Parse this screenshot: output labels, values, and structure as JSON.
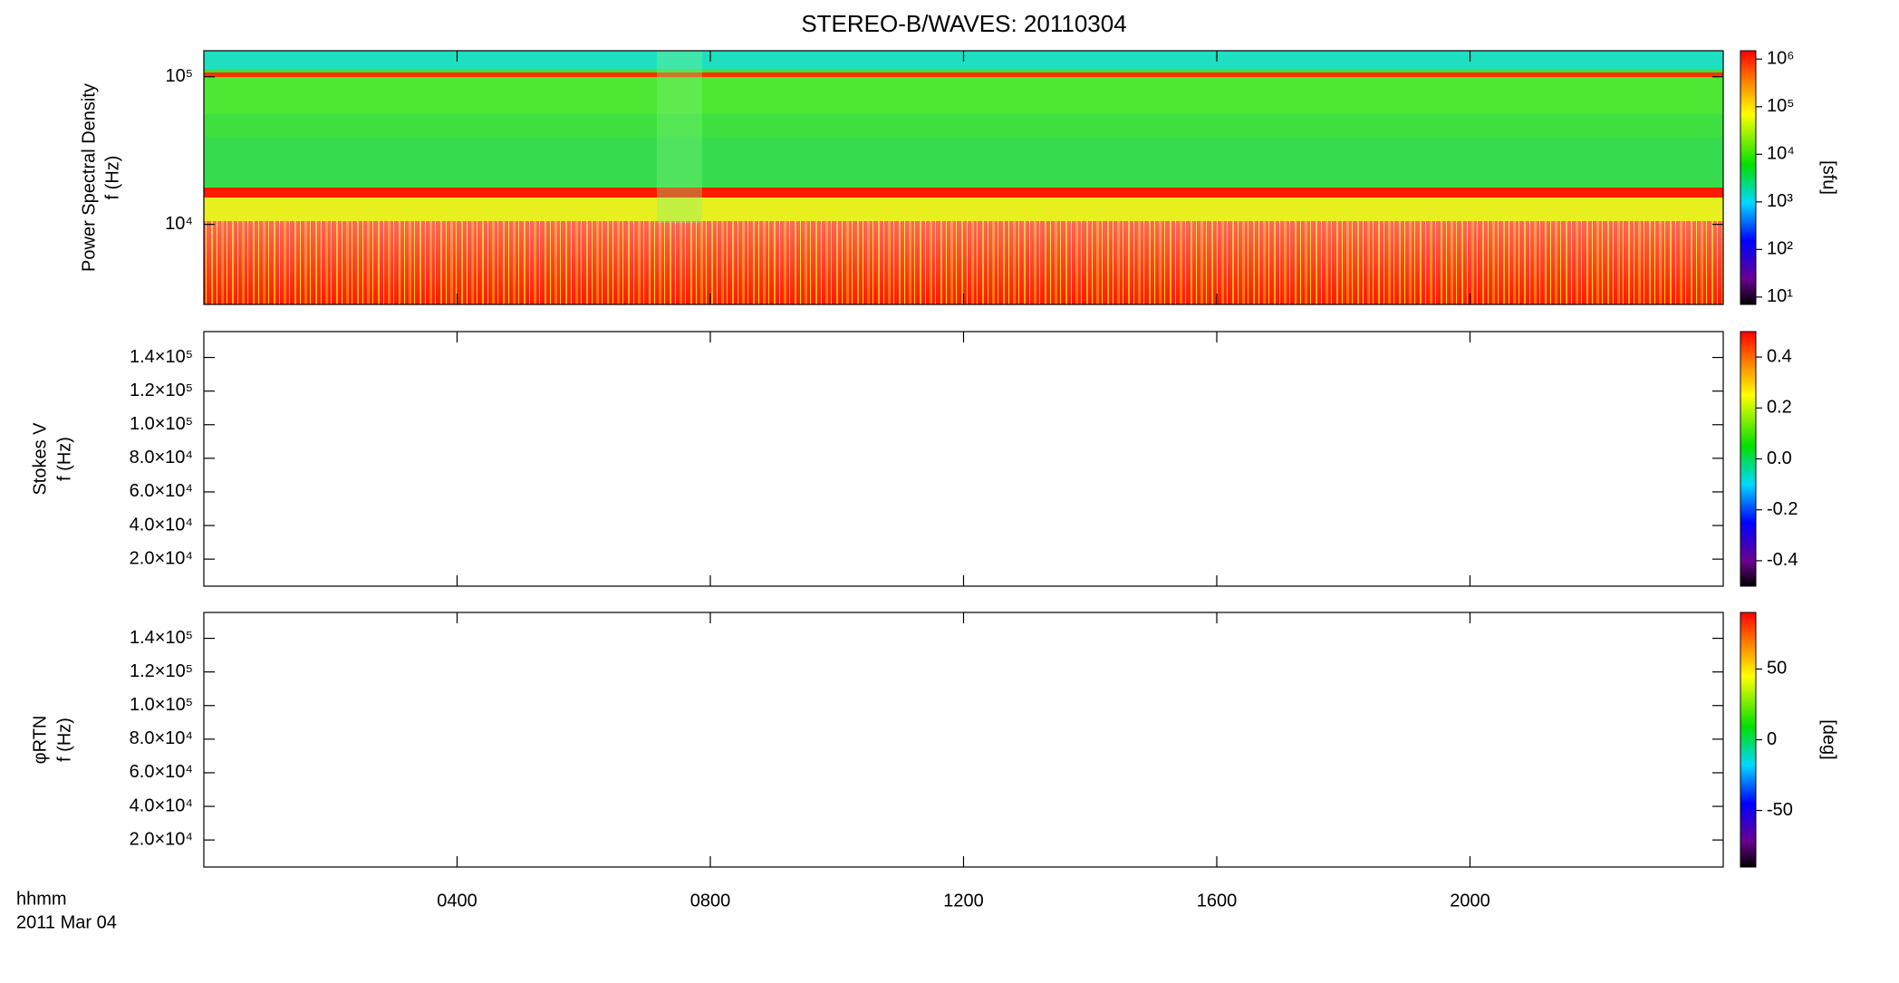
{
  "chart_data": [
    {
      "type": "spectrogram",
      "title": "STEREO-B/WAVES: 20110304",
      "ylabel": "Power Spectral Density",
      "yunit": "f (Hz)",
      "ylog": true,
      "ylim": [
        2870,
        150000
      ],
      "yticks": [
        {
          "value": 10000,
          "label": "10⁴"
        },
        {
          "value": 100000,
          "label": "10⁵"
        }
      ],
      "colorbar": {
        "log": true,
        "lim": [
          7,
          1500000
        ],
        "label": "[sfu]",
        "ticks": [
          {
            "value": 10,
            "label": "10¹"
          },
          {
            "value": 100,
            "label": "10²"
          },
          {
            "value": 1000,
            "label": "10³"
          },
          {
            "value": 10000,
            "label": "10⁴"
          },
          {
            "value": 100000,
            "label": "10⁵"
          },
          {
            "value": 1000000,
            "label": "10⁶"
          }
        ]
      }
    },
    {
      "type": "spectrogram",
      "ylabel": "Stokes V",
      "yunit": "f (Hz)",
      "ylog": false,
      "ylim": [
        3900,
        155400
      ],
      "yticks": [
        {
          "value": 20000,
          "label": "2.0×10⁴"
        },
        {
          "value": 40000,
          "label": "4.0×10⁴"
        },
        {
          "value": 60000,
          "label": "6.0×10⁴"
        },
        {
          "value": 80000,
          "label": "8.0×10⁴"
        },
        {
          "value": 100000,
          "label": "1.0×10⁵"
        },
        {
          "value": 120000,
          "label": "1.2×10⁵"
        },
        {
          "value": 140000,
          "label": "1.4×10⁵"
        }
      ],
      "colorbar": {
        "log": false,
        "lim": [
          -0.5,
          0.5
        ],
        "ticks": [
          -0.4,
          -0.2,
          {
            "value": 0,
            "label": "0.0"
          },
          0.2,
          0.4
        ]
      }
    },
    {
      "type": "spectrogram",
      "ylabel": "φRTN",
      "yunit": "f (Hz)",
      "ylog": false,
      "ylim": [
        3900,
        155400
      ],
      "yticks": [
        {
          "value": 20000,
          "label": "2.0×10⁴"
        },
        {
          "value": 40000,
          "label": "4.0×10⁴"
        },
        {
          "value": 60000,
          "label": "6.0×10⁴"
        },
        {
          "value": 80000,
          "label": "8.0×10⁴"
        },
        {
          "value": 100000,
          "label": "1.0×10⁵"
        },
        {
          "value": 120000,
          "label": "1.2×10⁵"
        },
        {
          "value": 140000,
          "label": "1.4×10⁵"
        }
      ],
      "colorbar": {
        "log": false,
        "lim": [
          -90,
          90
        ],
        "label": "[deg]",
        "ticks": [
          -50,
          0,
          50
        ]
      },
      "xlim": [
        0,
        24
      ],
      "xticks": [
        {
          "value": 4,
          "label": "0400"
        },
        {
          "value": 8,
          "label": "0800"
        },
        {
          "value": 12,
          "label": "1200"
        },
        {
          "value": 16,
          "label": "1600"
        },
        {
          "value": 20,
          "label": "2000"
        }
      ],
      "xlabel": "hhmm",
      "date": "2011 Mar 04"
    }
  ]
}
